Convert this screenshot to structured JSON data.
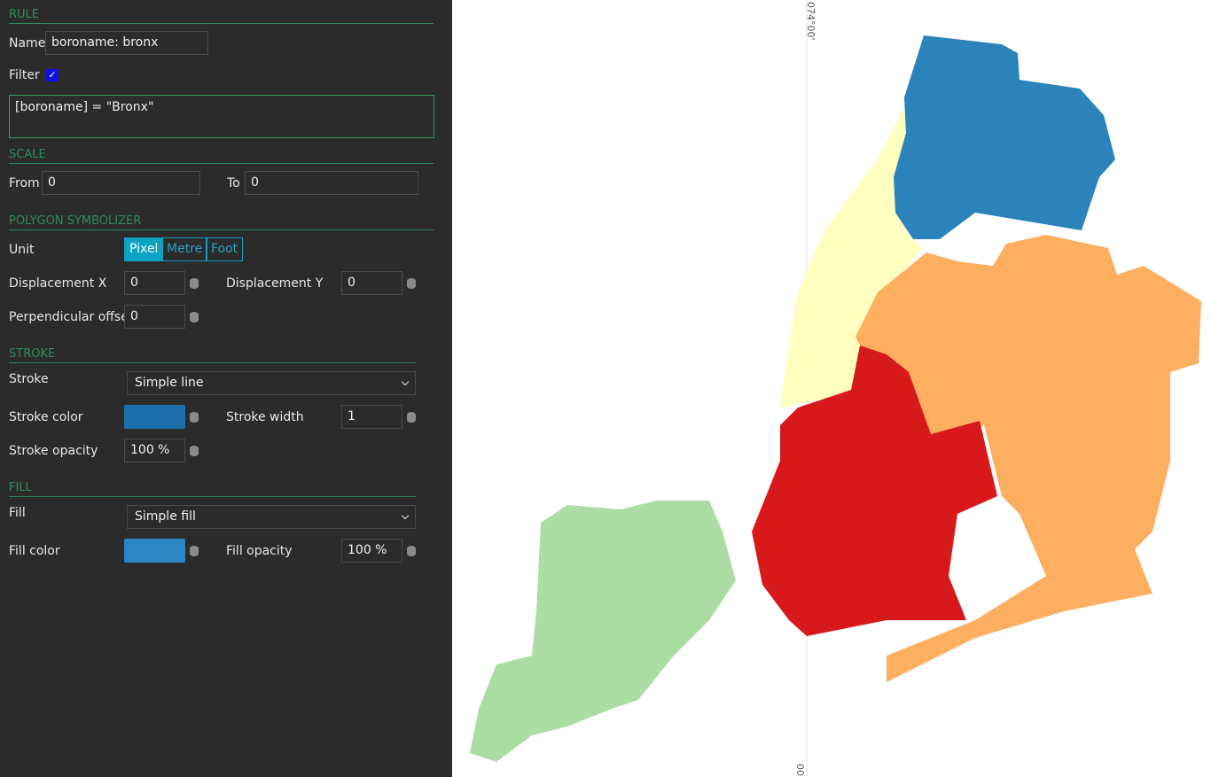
{
  "panel": {
    "rule": {
      "header": "RULE",
      "name_label": "Name",
      "name_value": "boroname: bronx",
      "filter_label": "Filter",
      "filter_expression": "[boroname] = \"Bronx\""
    },
    "scale": {
      "header": "SCALE",
      "from_label": "From",
      "from_value": "0",
      "to_label": "To",
      "to_value": "0"
    },
    "polygon_symbolizer": {
      "header": "POLYGON SYMBOLIZER",
      "unit_label": "Unit",
      "units": [
        "Pixel",
        "Metre",
        "Foot"
      ],
      "displacement_x_label": "Displacement X",
      "displacement_x_value": "0",
      "displacement_y_label": "Displacement Y",
      "displacement_y_value": "0",
      "perpendicular_offset_label": "Perpendicular offset",
      "perpendicular_offset_value": "0"
    },
    "stroke": {
      "header": "STROKE",
      "stroke_label": "Stroke",
      "stroke_value": "Simple line",
      "color_label": "Stroke color",
      "color": "#1d6fab",
      "width_label": "Stroke width",
      "width_value": "1",
      "opacity_label": "Stroke opacity",
      "opacity_value": "100 %"
    },
    "fill": {
      "header": "FILL",
      "fill_label": "Fill",
      "fill_value": "Simple fill",
      "color_label": "Fill color",
      "color": "#2c86c3",
      "opacity_label": "Fill opacity",
      "opacity_value": "100 %"
    }
  },
  "map": {
    "top_coordinate_label": "074°00'",
    "bottom_coordinate_label": "00"
  }
}
